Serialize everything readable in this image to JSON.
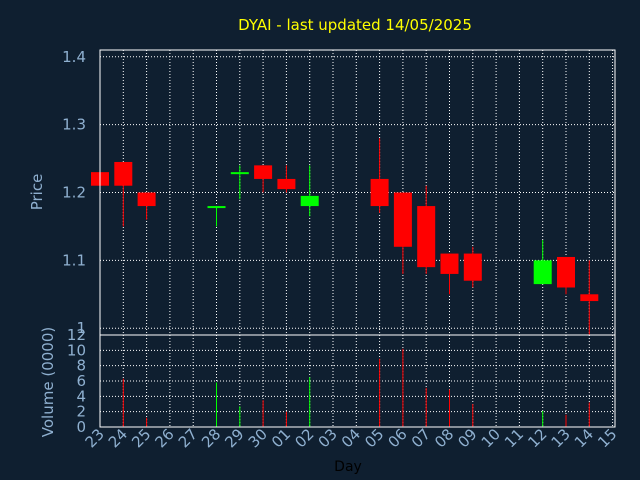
{
  "chart_data": [
    {
      "type": "candlestick",
      "title": "DYAI - last updated 14/05/2025",
      "ylabel": "Price",
      "ylim": [
        0.99,
        1.41
      ],
      "yticks": [
        1.4,
        1.3,
        1.2,
        1.1,
        1
      ],
      "ytick_labels": [
        "1.4",
        "1.3",
        "1.2",
        "1.1",
        "1"
      ],
      "grid": true,
      "colors": {
        "up": "#00ff00",
        "down": "#ff0000",
        "grid": "#ffffff",
        "background": "#0f1f30",
        "title": "#ffff00",
        "axis_text": "#8fb0d0"
      },
      "candles": [
        {
          "x": "23",
          "open": 1.23,
          "high": 1.23,
          "low": 1.21,
          "close": 1.21
        },
        {
          "x": "24",
          "open": 1.245,
          "high": 1.245,
          "low": 1.15,
          "close": 1.21
        },
        {
          "x": "25",
          "open": 1.2,
          "high": 1.2,
          "low": 1.16,
          "close": 1.18
        },
        {
          "x": "28",
          "open": 1.18,
          "high": 1.18,
          "low": 1.15,
          "close": 1.18
        },
        {
          "x": "29",
          "open": 1.23,
          "high": 1.24,
          "low": 1.19,
          "close": 1.23
        },
        {
          "x": "30",
          "open": 1.24,
          "high": 1.24,
          "low": 1.2,
          "close": 1.22
        },
        {
          "x": "01",
          "open": 1.22,
          "high": 1.24,
          "low": 1.2,
          "close": 1.205
        },
        {
          "x": "02",
          "open": 1.18,
          "high": 1.24,
          "low": 1.165,
          "close": 1.195
        },
        {
          "x": "05",
          "open": 1.22,
          "high": 1.28,
          "low": 1.17,
          "close": 1.18
        },
        {
          "x": "06",
          "open": 1.2,
          "high": 1.2,
          "low": 1.08,
          "close": 1.12
        },
        {
          "x": "07",
          "open": 1.18,
          "high": 1.21,
          "low": 1.08,
          "close": 1.09
        },
        {
          "x": "08",
          "open": 1.11,
          "high": 1.11,
          "low": 1.05,
          "close": 1.08
        },
        {
          "x": "09",
          "open": 1.11,
          "high": 1.12,
          "low": 1.06,
          "close": 1.07
        },
        {
          "x": "12",
          "open": 1.065,
          "high": 1.13,
          "low": 1.065,
          "close": 1.1
        },
        {
          "x": "13",
          "open": 1.105,
          "high": 1.105,
          "low": 1.05,
          "close": 1.06
        },
        {
          "x": "14",
          "open": 1.05,
          "high": 1.1,
          "low": 0.99,
          "close": 1.04
        }
      ]
    },
    {
      "type": "bar",
      "ylabel": "Volume (0000)",
      "xlabel": "Day",
      "ylim": [
        0,
        12
      ],
      "yticks": [
        0,
        2,
        4,
        6,
        8,
        10,
        12
      ],
      "ytick_labels": [
        "0",
        "2",
        "4",
        "6",
        "8",
        "10",
        "12"
      ],
      "categories": [
        "23",
        "24",
        "25",
        "26",
        "27",
        "28",
        "29",
        "30",
        "01",
        "02",
        "03",
        "04",
        "05",
        "06",
        "07",
        "08",
        "09",
        "10",
        "11",
        "12",
        "13",
        "14",
        "15"
      ],
      "series": [
        {
          "values": [
            0,
            6.3,
            1.2,
            0,
            0,
            5.8,
            2.7,
            3.5,
            2,
            6.5,
            0,
            0,
            8.9,
            10.2,
            5.1,
            4.9,
            3,
            0,
            0,
            2.1,
            1.6,
            3.2,
            0
          ],
          "colors": [
            "#ff0000",
            "#ff0000",
            "#ff0000",
            "#ff0000",
            "#ff0000",
            "#00ff00",
            "#00ff00",
            "#ff0000",
            "#ff0000",
            "#00ff00",
            "#ff0000",
            "#ff0000",
            "#ff0000",
            "#ff0000",
            "#ff0000",
            "#ff0000",
            "#ff0000",
            "#ff0000",
            "#ff0000",
            "#00ff00",
            "#ff0000",
            "#ff0000",
            "#ff0000"
          ]
        }
      ]
    }
  ]
}
